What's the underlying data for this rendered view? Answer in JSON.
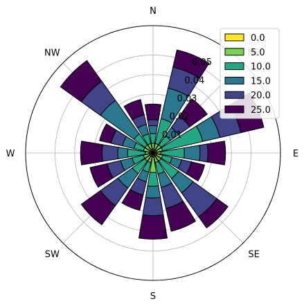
{
  "chart_data": {
    "type": "windrose",
    "title": "",
    "directions": [
      "N",
      "NNE",
      "NE",
      "ENE",
      "E",
      "ESE",
      "SE",
      "SSE",
      "S",
      "SSW",
      "SW",
      "WSW",
      "W",
      "WNW",
      "NW",
      "NNW"
    ],
    "direction_labels": [
      "N",
      "NE",
      "E",
      "SE",
      "S",
      "SW",
      "W",
      "NW"
    ],
    "radial_ticks": [
      "0.01",
      "0.02",
      "0.03",
      "0.04",
      "0.05"
    ],
    "radial_tick_values": [
      0.01,
      0.02,
      0.03,
      0.04,
      0.05
    ],
    "rmax": 0.065,
    "legend_position": "top-right",
    "series": [
      {
        "name": "0.0",
        "color": "#fde725",
        "values": [
          0.002,
          0.002,
          0.002,
          0.002,
          0.002,
          0.002,
          0.002,
          0.002,
          0.002,
          0.002,
          0.002,
          0.002,
          0.002,
          0.002,
          0.002,
          0.002
        ]
      },
      {
        "name": "5.0",
        "color": "#7ad151",
        "values": [
          0.003,
          0.003,
          0.003,
          0.003,
          0.002,
          0.003,
          0.003,
          0.003,
          0.008,
          0.003,
          0.003,
          0.003,
          0.002,
          0.003,
          0.003,
          0.003
        ]
      },
      {
        "name": "10.0",
        "color": "#22a884",
        "values": [
          0.005,
          0.013,
          0.006,
          0.021,
          0.012,
          0.005,
          0.011,
          0.006,
          0.007,
          0.005,
          0.008,
          0.006,
          0.009,
          0.005,
          0.007,
          0.005
        ]
      },
      {
        "name": "15.0",
        "color": "#2a788e",
        "values": [
          0.004,
          0.016,
          0.005,
          0.009,
          0.008,
          0.005,
          0.009,
          0.007,
          0.006,
          0.005,
          0.009,
          0.006,
          0.005,
          0.006,
          0.021,
          0.005
        ]
      },
      {
        "name": "20.0",
        "color": "#414487",
        "values": [
          0.003,
          0.011,
          0.007,
          0.011,
          0.004,
          0.005,
          0.015,
          0.011,
          0.009,
          0.007,
          0.011,
          0.007,
          0.008,
          0.006,
          0.012,
          0.005
        ]
      },
      {
        "name": "25.0",
        "color": "#440154",
        "values": [
          0.008,
          0.009,
          0.011,
          0.012,
          0.009,
          0.007,
          0.007,
          0.012,
          0.012,
          0.008,
          0.012,
          0.009,
          0.011,
          0.006,
          0.013,
          0.008
        ]
      }
    ]
  }
}
